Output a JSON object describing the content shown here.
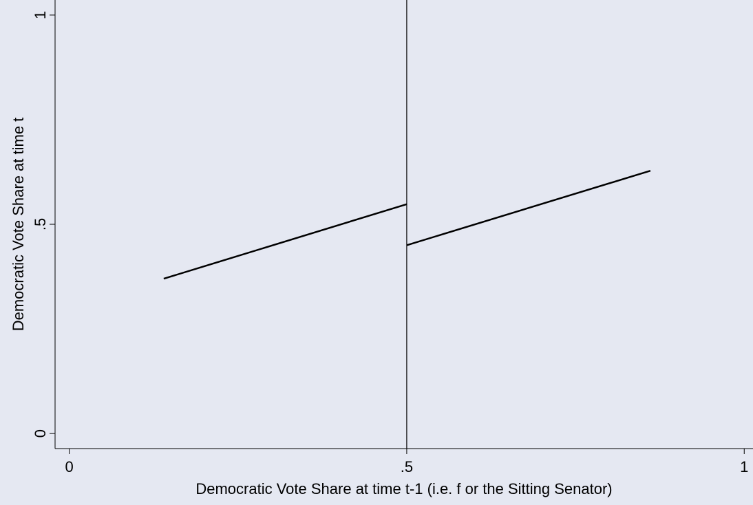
{
  "chart_data": {
    "type": "line",
    "xlabel": "Democratic Vote Share at time t-1 (i.e. f or the Sitting Senator)",
    "ylabel": "Democratic Vote Share at time t",
    "series": [
      {
        "color": "#000000",
        "x": [
          0.14,
          0.5
        ],
        "values": [
          0.37,
          0.548
        ]
      },
      {
        "color": "#000000",
        "x": [
          0.5,
          0.861
        ],
        "values": [
          0.45,
          0.628
        ]
      }
    ],
    "xline": 0.5,
    "xlim": [
      -0.021,
      1.013
    ],
    "ylim": [
      -0.036,
      1.036
    ],
    "xticks": [
      0,
      {
        "value": 0.5,
        "label": ".5"
      },
      1
    ],
    "yticks": [
      0,
      {
        "value": 0.5,
        "label": ".5"
      },
      1
    ]
  }
}
